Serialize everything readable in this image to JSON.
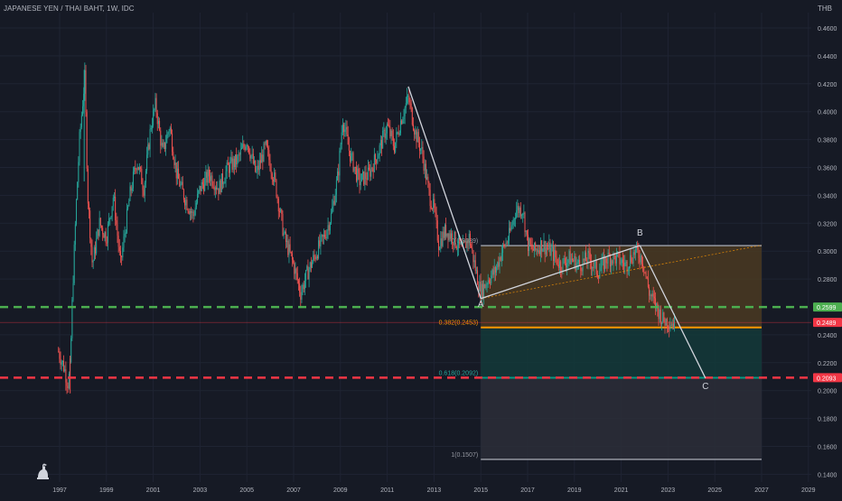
{
  "header": {
    "title": "JAPANESE YEN / THAI BAHT, 1W, IDC",
    "currency": "THB"
  },
  "colors": {
    "background": "#161a25",
    "grid": "#1f2433",
    "up": "#26a69a",
    "down": "#ef5350",
    "green_line": "#4caf50",
    "red_line": "#f23645",
    "orange_line": "#ff9800",
    "teal_line": "#089981",
    "zone_top": "#4a3a22",
    "zone_mid": "#133a3a",
    "zone_low": "#2b2e38",
    "wave": "#d1d4dc"
  },
  "icons": [
    "tradingview-logo-icon"
  ],
  "chart_data": {
    "type": "line",
    "style": "candlestick",
    "title": "JAPANESE YEN / THAI BAHT, 1W, IDC",
    "ylabel": "THB",
    "ylim": [
      0.14,
      0.47
    ],
    "xlim": [
      1996.0,
      2030.0
    ],
    "y_ticks": [
      "0.4600",
      "0.4400",
      "0.4200",
      "0.4000",
      "0.3800",
      "0.3600",
      "0.3400",
      "0.3200",
      "0.3000",
      "0.2800",
      "0.2400",
      "0.2200",
      "0.2000",
      "0.1800",
      "0.1600",
      "0.1400"
    ],
    "x_ticks": [
      "1997",
      "1999",
      "2001",
      "2003",
      "2005",
      "2007",
      "2009",
      "2011",
      "2013",
      "2015",
      "2017",
      "2019",
      "2021",
      "2023",
      "2025",
      "2027",
      "2029"
    ],
    "price_path": [
      [
        1996.95,
        0.228
      ],
      [
        1997.2,
        0.216
      ],
      [
        1997.35,
        0.205
      ],
      [
        1997.45,
        0.215
      ],
      [
        1997.55,
        0.27
      ],
      [
        1997.7,
        0.33
      ],
      [
        1997.85,
        0.38
      ],
      [
        1998.0,
        0.41
      ],
      [
        1998.08,
        0.425
      ],
      [
        1998.2,
        0.34
      ],
      [
        1998.4,
        0.29
      ],
      [
        1998.7,
        0.32
      ],
      [
        1999.0,
        0.31
      ],
      [
        1999.3,
        0.34
      ],
      [
        1999.6,
        0.29
      ],
      [
        2000.0,
        0.34
      ],
      [
        2000.3,
        0.365
      ],
      [
        2000.6,
        0.345
      ],
      [
        2000.9,
        0.39
      ],
      [
        2001.1,
        0.405
      ],
      [
        2001.4,
        0.37
      ],
      [
        2001.7,
        0.39
      ],
      [
        2002.0,
        0.355
      ],
      [
        2002.3,
        0.34
      ],
      [
        2002.7,
        0.325
      ],
      [
        2003.0,
        0.345
      ],
      [
        2003.4,
        0.355
      ],
      [
        2003.8,
        0.345
      ],
      [
        2004.2,
        0.36
      ],
      [
        2004.6,
        0.365
      ],
      [
        2005.0,
        0.38
      ],
      [
        2005.4,
        0.355
      ],
      [
        2005.8,
        0.375
      ],
      [
        2006.2,
        0.35
      ],
      [
        2006.6,
        0.31
      ],
      [
        2007.0,
        0.29
      ],
      [
        2007.3,
        0.27
      ],
      [
        2007.6,
        0.285
      ],
      [
        2008.0,
        0.3
      ],
      [
        2008.3,
        0.31
      ],
      [
        2008.6,
        0.325
      ],
      [
        2008.9,
        0.355
      ],
      [
        2009.1,
        0.395
      ],
      [
        2009.4,
        0.37
      ],
      [
        2009.8,
        0.35
      ],
      [
        2010.2,
        0.355
      ],
      [
        2010.6,
        0.37
      ],
      [
        2011.0,
        0.39
      ],
      [
        2011.3,
        0.375
      ],
      [
        2011.6,
        0.395
      ],
      [
        2011.9,
        0.41
      ],
      [
        2012.2,
        0.385
      ],
      [
        2012.5,
        0.37
      ],
      [
        2012.8,
        0.34
      ],
      [
        2013.0,
        0.33
      ],
      [
        2013.2,
        0.305
      ],
      [
        2013.5,
        0.315
      ],
      [
        2013.8,
        0.31
      ],
      [
        2014.2,
        0.3
      ],
      [
        2014.5,
        0.31
      ],
      [
        2014.8,
        0.285
      ],
      [
        2015.0,
        0.27
      ],
      [
        2015.3,
        0.28
      ],
      [
        2015.6,
        0.285
      ],
      [
        2015.9,
        0.3
      ],
      [
        2016.2,
        0.31
      ],
      [
        2016.5,
        0.33
      ],
      [
        2016.8,
        0.33
      ],
      [
        2017.0,
        0.305
      ],
      [
        2017.3,
        0.3
      ],
      [
        2017.6,
        0.305
      ],
      [
        2018.0,
        0.3
      ],
      [
        2018.4,
        0.29
      ],
      [
        2018.8,
        0.295
      ],
      [
        2019.2,
        0.29
      ],
      [
        2019.6,
        0.295
      ],
      [
        2020.0,
        0.285
      ],
      [
        2020.4,
        0.295
      ],
      [
        2020.8,
        0.295
      ],
      [
        2021.2,
        0.29
      ],
      [
        2021.6,
        0.3
      ],
      [
        2021.9,
        0.295
      ],
      [
        2022.2,
        0.27
      ],
      [
        2022.5,
        0.26
      ],
      [
        2022.8,
        0.25
      ],
      [
        2023.0,
        0.25
      ],
      [
        2023.3,
        0.248
      ]
    ],
    "wave_lines": [
      {
        "from": [
          2011.9,
          0.418
        ],
        "to": [
          2015.0,
          0.266
        ]
      },
      {
        "from": [
          2015.0,
          0.266
        ],
        "to": [
          2021.8,
          0.304
        ]
      },
      {
        "from": [
          2021.8,
          0.304
        ],
        "to": [
          2024.6,
          0.209
        ]
      }
    ],
    "wave_points": [
      {
        "label": "A",
        "x": 2015.0,
        "y": 0.26
      },
      {
        "label": "B",
        "x": 2021.8,
        "y": 0.311
      },
      {
        "label": "C",
        "x": 2024.6,
        "y": 0.201
      }
    ],
    "dotted_trend": {
      "from": [
        2015.0,
        0.266
      ],
      "to": [
        2027.0,
        0.3043
      ]
    },
    "fibonacci": {
      "x_start": 2015.0,
      "x_end": 2027.0,
      "levels": [
        {
          "label": "0(0.3039)",
          "ratio": 0,
          "value": 0.3039
        },
        {
          "label": "0.382(0.2453)",
          "ratio": 0.382,
          "value": 0.2453
        },
        {
          "label": "0.618(0.2092)",
          "ratio": 0.618,
          "value": 0.2092
        },
        {
          "label": "1(0.1507)",
          "ratio": 1,
          "value": 0.1507
        }
      ]
    },
    "horizontal_lines": [
      {
        "name": "green-support",
        "value": 0.2599,
        "color": "#4caf50"
      },
      {
        "name": "red-support",
        "value": 0.2093,
        "color": "#f23645"
      }
    ],
    "price_tags": [
      {
        "text": "0.2599",
        "value": 0.2599,
        "color": "#4caf50"
      },
      {
        "text": "0.2489",
        "value": 0.2489,
        "color": "#f23645"
      },
      {
        "text": "0.2093",
        "value": 0.2093,
        "color": "#f23645"
      }
    ]
  }
}
